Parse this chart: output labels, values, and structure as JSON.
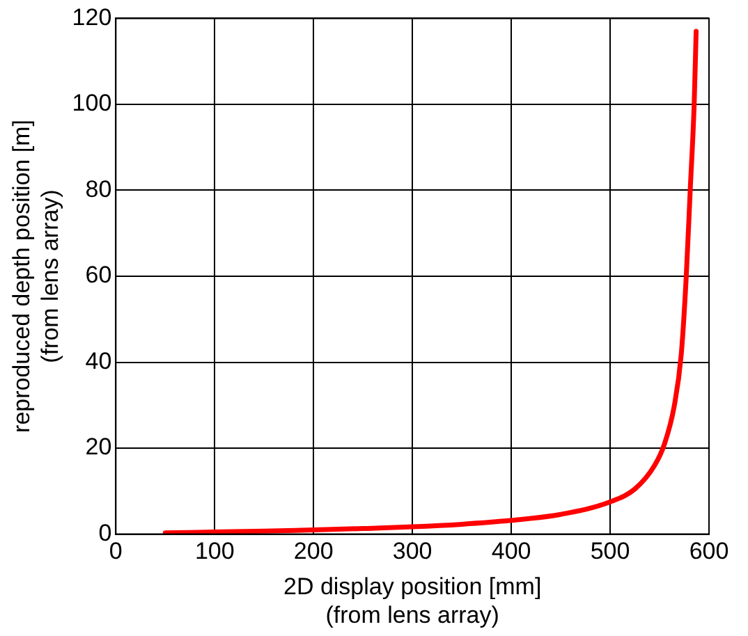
{
  "chart_data": {
    "type": "line",
    "xlabel": "2D display position [mm]\n(from lens array)",
    "ylabel": "reproduced depth position [m]\n(from lens array)",
    "series": [
      {
        "color": "#ff0000",
        "x": [
          50,
          100,
          150,
          200,
          250,
          300,
          350,
          400,
          450,
          500,
          525,
          545,
          555,
          565,
          572,
          577,
          581,
          585,
          587
        ],
        "values": [
          0.3,
          0.5,
          0.7,
          1.0,
          1.3,
          1.7,
          2.3,
          3.2,
          4.6,
          7.5,
          10.5,
          16,
          21,
          30,
          42,
          60,
          80,
          100,
          117
        ]
      }
    ],
    "xlim": [
      0,
      600
    ],
    "xticks": [
      0,
      100,
      200,
      300,
      400,
      500,
      600
    ],
    "ylim": [
      0,
      120
    ],
    "yticks": [
      0,
      20,
      40,
      60,
      80,
      100,
      120
    ],
    "grid": true,
    "marker": "none",
    "line_style": "solid"
  }
}
